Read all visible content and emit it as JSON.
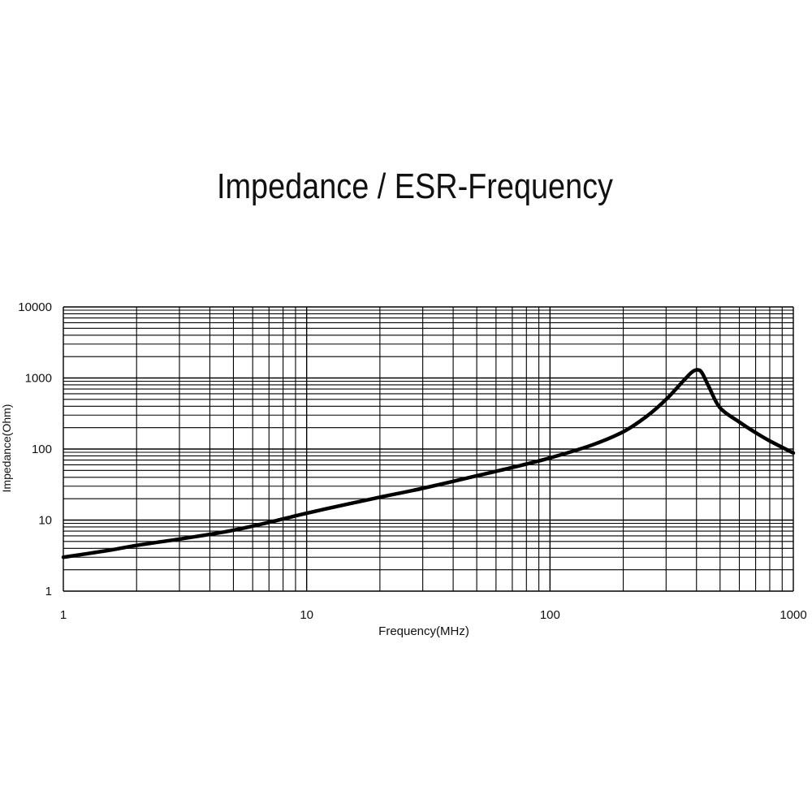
{
  "chart_data": {
    "type": "line",
    "title": "Impedance / ESR-Frequency",
    "xlabel": "Frequency(MHz)",
    "ylabel": "Impedance(Ohm)",
    "xscale": "log",
    "yscale": "log",
    "xlim": [
      1,
      1000
    ],
    "ylim": [
      1,
      10000
    ],
    "x_ticks": [
      "1",
      "10",
      "100",
      "1000"
    ],
    "y_ticks": [
      "10000",
      "1000",
      "100",
      "10",
      "1"
    ],
    "grid": true,
    "legend": "none",
    "line_color": "#000000",
    "series": [
      {
        "x": [
          1,
          1.5,
          2,
          3,
          4,
          5,
          7,
          10,
          15,
          20,
          30,
          50,
          70,
          100,
          150,
          200,
          250,
          300,
          350,
          380,
          400,
          420,
          450,
          500,
          600,
          700,
          800,
          1000
        ],
        "y": [
          3.0,
          3.7,
          4.4,
          5.4,
          6.3,
          7.2,
          9.3,
          12.5,
          17,
          21,
          28,
          42,
          55,
          75,
          115,
          175,
          290,
          500,
          880,
          1180,
          1300,
          1200,
          750,
          380,
          240,
          170,
          130,
          88
        ]
      }
    ]
  }
}
